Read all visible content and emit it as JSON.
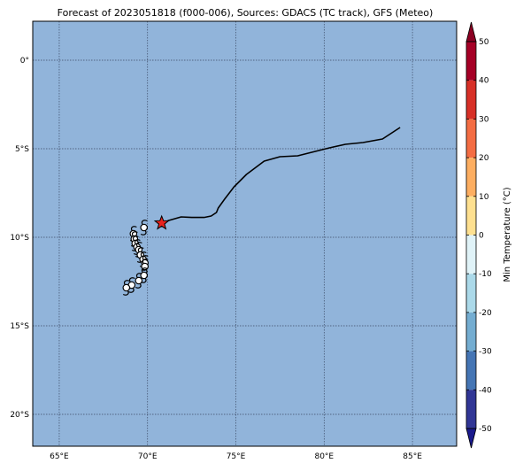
{
  "title": "Forecast of 2023051818 (f000-006), Sources: GDACS (TC track), GFS (Meteo)",
  "map": {
    "lon_range": [
      63.5,
      87.5
    ],
    "lat_range": [
      -21.8,
      2.2
    ],
    "ocean_color": "#91b4da",
    "grid": true,
    "lon_ticks": [
      {
        "value": 65,
        "label": "65°E"
      },
      {
        "value": 70,
        "label": "70°E"
      },
      {
        "value": 75,
        "label": "75°E"
      },
      {
        "value": 80,
        "label": "80°E"
      },
      {
        "value": 85,
        "label": "85°E"
      }
    ],
    "lat_ticks": [
      {
        "value": 0,
        "label": "0°"
      },
      {
        "value": -5,
        "label": "5°S"
      },
      {
        "value": -10,
        "label": "10°S"
      },
      {
        "value": -15,
        "label": "15°S"
      },
      {
        "value": -20,
        "label": "20°S"
      }
    ]
  },
  "track": {
    "path": [
      [
        84.3,
        -3.8
      ],
      [
        83.3,
        -4.45
      ],
      [
        82.2,
        -4.65
      ],
      [
        81.2,
        -4.75
      ],
      [
        80.3,
        -4.95
      ],
      [
        79.3,
        -5.2
      ],
      [
        78.5,
        -5.4
      ],
      [
        77.5,
        -5.45
      ],
      [
        76.6,
        -5.7
      ],
      [
        75.6,
        -6.45
      ],
      [
        74.9,
        -7.15
      ],
      [
        74.4,
        -7.8
      ],
      [
        74.0,
        -8.35
      ],
      [
        73.9,
        -8.6
      ],
      [
        73.6,
        -8.8
      ],
      [
        73.2,
        -8.88
      ],
      [
        72.5,
        -8.88
      ],
      [
        71.9,
        -8.85
      ],
      [
        71.2,
        -9.05
      ],
      [
        70.8,
        -9.2
      ]
    ],
    "current_position": [
      70.8,
      -9.2
    ],
    "current_color": "#e8231e",
    "cyclone_symbols": [
      [
        69.8,
        -9.45
      ],
      [
        69.2,
        -9.8
      ],
      [
        69.25,
        -10.1
      ],
      [
        69.3,
        -10.35
      ],
      [
        69.4,
        -10.55
      ],
      [
        69.5,
        -10.7
      ],
      [
        69.6,
        -11.0
      ],
      [
        69.75,
        -11.25
      ],
      [
        69.85,
        -11.45
      ],
      [
        69.85,
        -11.65
      ],
      [
        69.8,
        -12.15
      ],
      [
        69.5,
        -12.45
      ],
      [
        69.1,
        -12.7
      ],
      [
        68.8,
        -12.85
      ]
    ]
  },
  "colorbar": {
    "label": "Min Temperature (°C)",
    "min": -50,
    "max": 50,
    "ticks": [
      50,
      40,
      30,
      20,
      10,
      0,
      -10,
      -20,
      -30,
      -40,
      -50
    ],
    "bands": [
      {
        "from": 40,
        "to": 50,
        "color": "#a50026"
      },
      {
        "from": 30,
        "to": 40,
        "color": "#d73027"
      },
      {
        "from": 20,
        "to": 30,
        "color": "#f46d43"
      },
      {
        "from": 10,
        "to": 20,
        "color": "#fdae61"
      },
      {
        "from": 0,
        "to": 10,
        "color": "#fee090"
      },
      {
        "from": -10,
        "to": 0,
        "color": "#e0f3f8"
      },
      {
        "from": -20,
        "to": -10,
        "color": "#abd9e9"
      },
      {
        "from": -30,
        "to": -20,
        "color": "#74add1"
      },
      {
        "from": -40,
        "to": -30,
        "color": "#4575b4"
      },
      {
        "from": -50,
        "to": -40,
        "color": "#313695"
      }
    ],
    "over_color": "#8b0022",
    "under_color": "#1a1a8c"
  }
}
